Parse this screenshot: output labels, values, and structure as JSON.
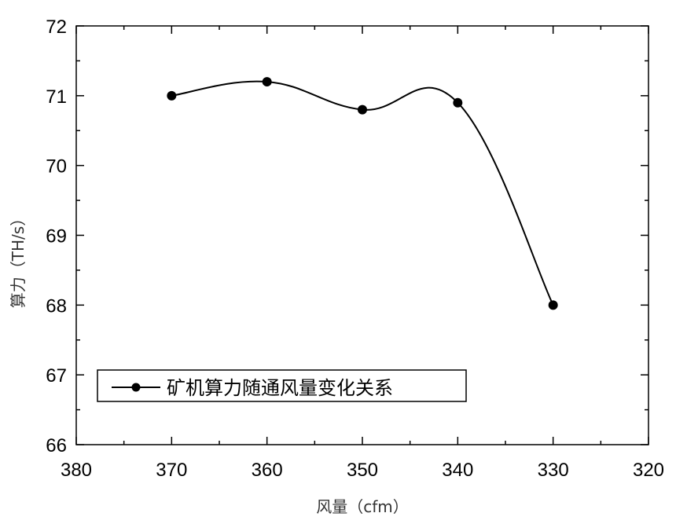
{
  "chart_data": {
    "type": "line",
    "title": "",
    "xlabel": "风量（cfm）",
    "ylabel": "算力（TH/s）",
    "xlim": [
      380,
      320
    ],
    "ylim": [
      66,
      72
    ],
    "x_reversed": true,
    "x_ticks": [
      "380",
      "370",
      "360",
      "350",
      "340",
      "330",
      "320"
    ],
    "y_ticks": [
      "66",
      "67",
      "68",
      "69",
      "70",
      "71",
      "72"
    ],
    "grid": false,
    "legend_position": "bottom-left",
    "series": [
      {
        "name": "矿机算力随通风量变化关系",
        "x": [
          370,
          360,
          350,
          340,
          330
        ],
        "y": [
          71.0,
          71.2,
          70.8,
          70.9,
          68.0
        ],
        "marker": "circle",
        "line": "smooth",
        "color": "#000000"
      }
    ]
  }
}
